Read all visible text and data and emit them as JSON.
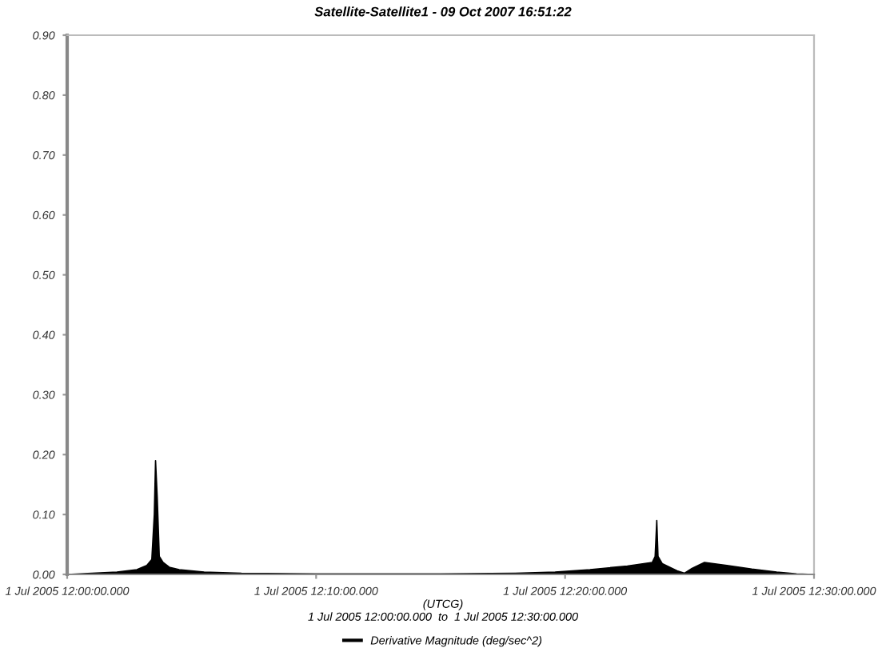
{
  "chart_data": {
    "type": "area",
    "title": "Satellite-Satellite1 - 09 Oct 2007 16:51:22",
    "xlabel": "(UTCG)",
    "annotations": [
      "1 Jul 2005 12:00:00.000  to  1 Jul 2005 12:30:00.000"
    ],
    "series": [
      {
        "name": "Derivative Magnitude (deg/sec^2)",
        "color": "#000000",
        "x": [
          "2005-07-01T12:00",
          "2005-07-01T12:01",
          "2005-07-01T12:02",
          "2005-07-01T12:02:48",
          "2005-07-01T12:03:12",
          "2005-07-01T12:03:24",
          "2005-07-01T12:03:30",
          "2005-07-01T12:03:33",
          "2005-07-01T12:03:37",
          "2005-07-01T12:03:42",
          "2005-07-01T12:03:51",
          "2005-07-01T12:04:06",
          "2005-07-01T12:04:30",
          "2005-07-01T12:05:30",
          "2005-07-01T12:07",
          "2005-07-01T12:10",
          "2005-07-01T12:15",
          "2005-07-01T12:18",
          "2005-07-01T12:19:36",
          "2005-07-01T12:21",
          "2005-07-01T12:22:30",
          "2005-07-01T12:23:30",
          "2005-07-01T12:23:37",
          "2005-07-01T12:23:41",
          "2005-07-01T12:23:44",
          "2005-07-01T12:23:54",
          "2005-07-01T12:24:30",
          "2005-07-01T12:24:48",
          "2005-07-01T12:25:06",
          "2005-07-01T12:25:36",
          "2005-07-01T12:26:30",
          "2005-07-01T12:27:30",
          "2005-07-01T12:28:30",
          "2005-07-01T12:29:18",
          "2005-07-01T12:30"
        ],
        "values": [
          0.0,
          0.002,
          0.004,
          0.008,
          0.015,
          0.025,
          0.1,
          0.19,
          0.13,
          0.03,
          0.02,
          0.012,
          0.008,
          0.004,
          0.002,
          0.001,
          0.001,
          0.002,
          0.004,
          0.008,
          0.014,
          0.02,
          0.03,
          0.09,
          0.03,
          0.018,
          0.006,
          0.002,
          0.01,
          0.02,
          0.015,
          0.009,
          0.004,
          0.001,
          0.0
        ]
      }
    ],
    "xlim": [
      "2005-07-01T12:00",
      "2005-07-01T12:30"
    ],
    "xticks": [
      {
        "value": "2005-07-01T12:00",
        "label": "1 Jul 2005 12:00:00.000"
      },
      {
        "value": "2005-07-01T12:10",
        "label": "1 Jul 2005 12:10:00.000"
      },
      {
        "value": "2005-07-01T12:20",
        "label": "1 Jul 2005 12:20:00.000"
      },
      {
        "value": "2005-07-01T12:30",
        "label": "1 Jul 2005 12:30:00.000"
      }
    ],
    "ylim": [
      0,
      0.9
    ],
    "yticks": [
      {
        "value": 0,
        "label": "0.00"
      },
      {
        "value": 0.1,
        "label": "0.10"
      },
      {
        "value": 0.2,
        "label": "0.20"
      },
      {
        "value": 0.3,
        "label": "0.30"
      },
      {
        "value": 0.4,
        "label": "0.40"
      },
      {
        "value": 0.5,
        "label": "0.50"
      },
      {
        "value": 0.6,
        "label": "0.60"
      },
      {
        "value": 0.7,
        "label": "0.70"
      },
      {
        "value": 0.8,
        "label": "0.80"
      },
      {
        "value": 0.9,
        "label": "0.90"
      }
    ],
    "legend": "bottom"
  }
}
